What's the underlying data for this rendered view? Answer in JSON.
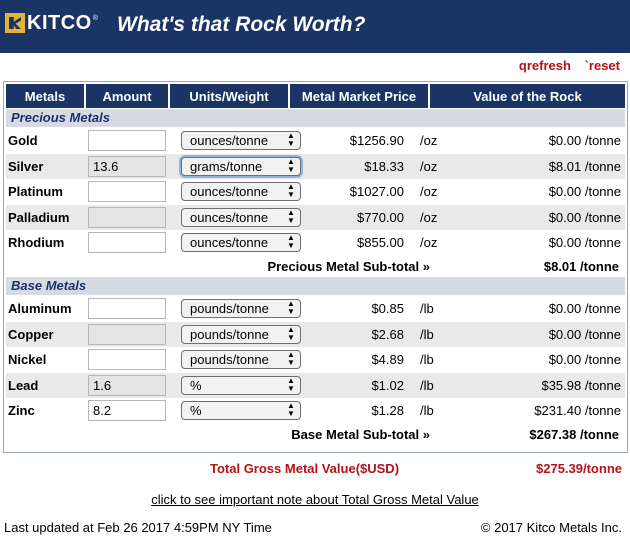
{
  "header": {
    "logo_text": "KITCO",
    "logo_reg": "®",
    "title": "What's that Rock Worth?"
  },
  "toolbar": {
    "refresh_label": "qrefresh",
    "reset_label": "`reset"
  },
  "table": {
    "headers": [
      "Metals",
      "Amount",
      "Units/Weight",
      "Metal Market Price",
      "Value of the Rock"
    ],
    "precious_title": "Precious Metals",
    "precious": [
      {
        "name": "Gold",
        "amount": "",
        "unit": "ounces/tonne",
        "price": "$1256.90",
        "per": "/oz",
        "value": "$0.00 /tonne"
      },
      {
        "name": "Silver",
        "amount": "13.6",
        "unit": "grams/tonne",
        "price": "$18.33",
        "per": "/oz",
        "value": "$8.01 /tonne"
      },
      {
        "name": "Platinum",
        "amount": "",
        "unit": "ounces/tonne",
        "price": "$1027.00",
        "per": "/oz",
        "value": "$0.00 /tonne"
      },
      {
        "name": "Palladium",
        "amount": "",
        "unit": "ounces/tonne",
        "price": "$770.00",
        "per": "/oz",
        "value": "$0.00 /tonne"
      },
      {
        "name": "Rhodium",
        "amount": "",
        "unit": "ounces/tonne",
        "price": "$855.00",
        "per": "/oz",
        "value": "$0.00 /tonne"
      }
    ],
    "precious_subtotal_label": "Precious Metal Sub-total »",
    "precious_subtotal_value": "$8.01 /tonne",
    "base_title": "Base Metals",
    "base": [
      {
        "name": "Aluminum",
        "amount": "",
        "unit": "pounds/tonne",
        "price": "$0.85",
        "per": "/lb",
        "value": "$0.00 /tonne"
      },
      {
        "name": "Copper",
        "amount": "",
        "unit": "pounds/tonne",
        "price": "$2.68",
        "per": "/lb",
        "value": "$0.00 /tonne"
      },
      {
        "name": "Nickel",
        "amount": "",
        "unit": "pounds/tonne",
        "price": "$4.89",
        "per": "/lb",
        "value": "$0.00 /tonne"
      },
      {
        "name": "Lead",
        "amount": "1.6",
        "unit": "%",
        "price": "$1.02",
        "per": "/lb",
        "value": "$35.98 /tonne"
      },
      {
        "name": "Zinc",
        "amount": "8.2",
        "unit": "%",
        "price": "$1.28",
        "per": "/lb",
        "value": "$231.40 /tonne"
      }
    ],
    "base_subtotal_label": "Base Metal Sub-total »",
    "base_subtotal_value": "$267.38 /tonne"
  },
  "total": {
    "label": "Total Gross Metal Value($USD)",
    "value": "$275.39/tonne"
  },
  "note_link": "click to see important note about Total Gross Metal Value",
  "footer": {
    "updated": "Last updated at Feb 26 2017 4:59PM NY Time",
    "copyright": "© 2017 Kitco Metals Inc."
  },
  "colors": {
    "header_bg": "#1b3466",
    "accent_red": "#b31218",
    "section_bg": "#d6dae3"
  },
  "icons": {
    "logo": "kitco-logo-icon",
    "select_arrows": "updown-arrows-icon"
  }
}
